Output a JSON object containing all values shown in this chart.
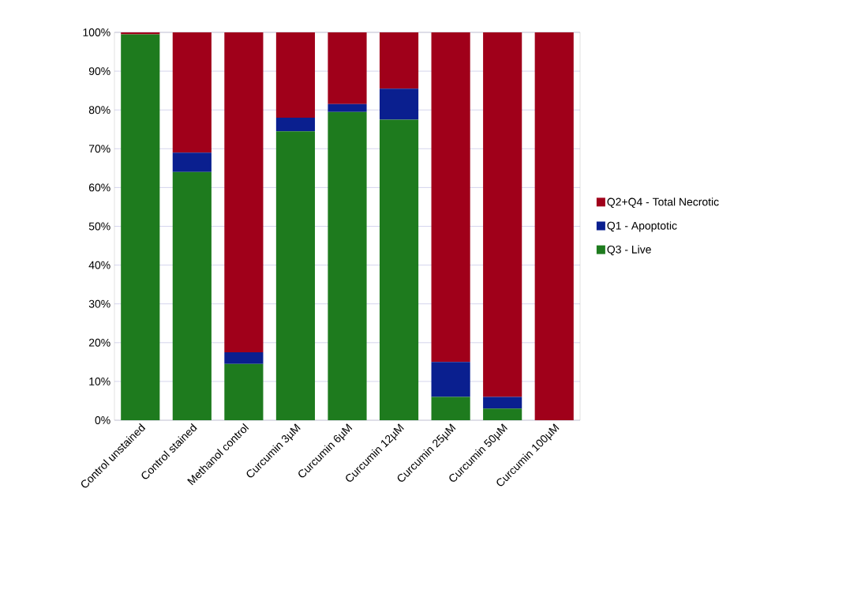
{
  "chart_data": {
    "type": "bar",
    "stacked": true,
    "categories": [
      "Control unstained",
      "Control stained",
      "Methanol control",
      "Curcumin 3µM",
      "Curcumin 6µM",
      "Curcumin 12µM",
      "Curcumin 25µM",
      "Curcumin 50µM",
      "Curcumin 100µM"
    ],
    "series": [
      {
        "name": "Q3 - Live",
        "color": "#1e7b1e",
        "values": [
          99.5,
          64,
          14.5,
          74.5,
          79.5,
          77.5,
          6,
          3,
          0
        ]
      },
      {
        "name": "Q1 - Apoptotic",
        "color": "#0a1f8f",
        "values": [
          0,
          5,
          3,
          3.5,
          2,
          8,
          9,
          3,
          0
        ]
      },
      {
        "name": "Q2+Q4 - Total Necrotic",
        "color": "#a0001a",
        "values": [
          0.5,
          31,
          82.5,
          22,
          18.5,
          14.5,
          85,
          94,
          100
        ]
      }
    ],
    "ylim": [
      0,
      100
    ],
    "yticks": [
      {
        "value": 0,
        "label": "0%"
      },
      {
        "value": 10,
        "label": "10%"
      },
      {
        "value": 20,
        "label": "20%"
      },
      {
        "value": 30,
        "label": "30%"
      },
      {
        "value": 40,
        "label": "40%"
      },
      {
        "value": 50,
        "label": "50%"
      },
      {
        "value": 60,
        "label": "60%"
      },
      {
        "value": 70,
        "label": "70%"
      },
      {
        "value": 80,
        "label": "80%"
      },
      {
        "value": 90,
        "label": "90%"
      },
      {
        "value": 100,
        "label": "100%"
      }
    ],
    "grid": "y",
    "legend": "right"
  }
}
